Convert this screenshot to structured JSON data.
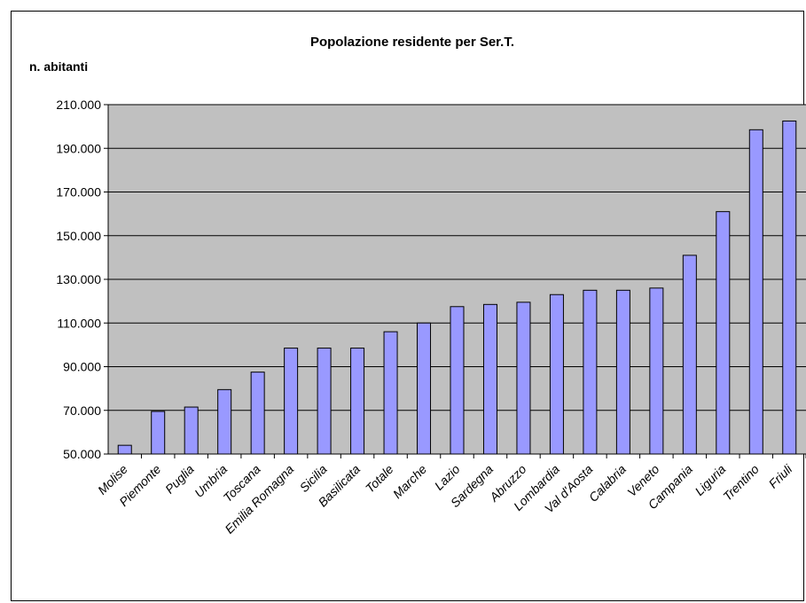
{
  "chart_data": {
    "type": "bar",
    "title": "Popolazione residente per Ser.T.",
    "xlabel": "",
    "ylabel": "n. abitanti",
    "ylim": [
      50000,
      210000
    ],
    "y_ticks": [
      50000,
      70000,
      90000,
      110000,
      130000,
      150000,
      170000,
      190000,
      210000
    ],
    "y_tick_labels": [
      "50.000",
      "70.000",
      "90.000",
      "110.000",
      "130.000",
      "150.000",
      "170.000",
      "190.000",
      "210.000"
    ],
    "grid": true,
    "legend": "none",
    "categories": [
      "Molise",
      "Piemonte",
      "Puglia",
      "Umbria",
      "Toscana",
      "Emilia Romagna",
      "Sicilia",
      "Basilicata",
      "Totale",
      "Marche",
      "Lazio",
      "Sardegna",
      "Abruzzo",
      "Lombardia",
      "Val d'Aosta",
      "Calabria",
      "Veneto",
      "Campania",
      "Liguria",
      "Trentino",
      "Friuli"
    ],
    "values": [
      54000,
      69500,
      71500,
      79500,
      87500,
      98500,
      98500,
      98500,
      106000,
      110000,
      117500,
      118500,
      119500,
      123000,
      125000,
      125000,
      126000,
      141000,
      161000,
      198500,
      202500
    ],
    "colors": {
      "plot_background": "#c0c0c0",
      "bar_fill": "#9999ff",
      "bar_stroke": "#000000",
      "gridline": "#000000"
    }
  }
}
